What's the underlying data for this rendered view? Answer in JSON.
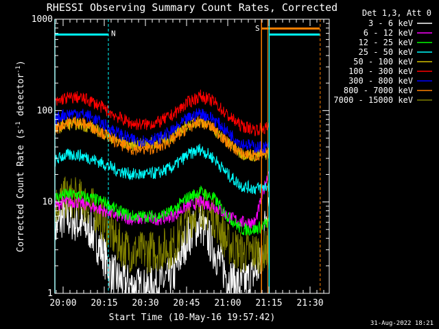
{
  "chart_data": {
    "type": "line",
    "title": "RHESSI Observing Summary Count Rates, Corrected",
    "xlabel": "Start Time (10-May-16 19:57:42)",
    "ylabel": "Corrected Count Rate (s⁻¹ detector⁻¹)",
    "ylabel_parts": {
      "main": "Corrected Count Rate (s",
      "exp1": "-1",
      "mid": " detector",
      "exp2": "-1",
      "end": ")"
    },
    "y_scale": "log",
    "ylim": [
      1,
      1000
    ],
    "y_ticks": [
      {
        "v": 1,
        "label": "1"
      },
      {
        "v": 10,
        "label": "10"
      },
      {
        "v": 100,
        "label": "100"
      },
      {
        "v": 1000,
        "label": "1000"
      }
    ],
    "xlim_minutes": [
      -3.0,
      97.0
    ],
    "x_ticks": [
      {
        "t": 0,
        "label": "20:00"
      },
      {
        "t": 15,
        "label": "20:15"
      },
      {
        "t": 30,
        "label": "20:30"
      },
      {
        "t": 45,
        "label": "20:45"
      },
      {
        "t": 60,
        "label": "21:00"
      },
      {
        "t": 75,
        "label": "21:15"
      },
      {
        "t": 90,
        "label": "21:30"
      }
    ],
    "legend_title": "Det 1,3, Att 0",
    "legend_position": "right",
    "footer_date": "31-Aug-2022 18:21",
    "series": [
      {
        "name": "3 - 6 keV",
        "color": "#ffffff",
        "x": [
          -3,
          0,
          5,
          10,
          14,
          17,
          20,
          25,
          30,
          35,
          40,
          45,
          50,
          55,
          60,
          65,
          72,
          75
        ],
        "y": [
          5,
          7,
          6,
          5,
          3,
          1.8,
          1.4,
          1.2,
          1.1,
          1.3,
          1.5,
          4,
          6,
          3,
          1.5,
          1.2,
          2,
          14
        ]
      },
      {
        "name": "6 - 12 keV",
        "color": "#ff00ff",
        "x": [
          -3,
          0,
          5,
          10,
          15,
          20,
          25,
          30,
          35,
          40,
          45,
          50,
          55,
          60,
          65,
          70,
          75
        ],
        "y": [
          9,
          10,
          10,
          9,
          8,
          7,
          6.5,
          6.5,
          6.5,
          7,
          9,
          10,
          9,
          7,
          6,
          6,
          22
        ]
      },
      {
        "name": "12 - 25 keV",
        "color": "#00ff00",
        "x": [
          -3,
          0,
          5,
          10,
          15,
          20,
          25,
          30,
          35,
          40,
          45,
          50,
          55,
          60,
          65,
          70,
          75
        ],
        "y": [
          11,
          12,
          12,
          11,
          10,
          8,
          7,
          7,
          7,
          8,
          11,
          13,
          11,
          7,
          5,
          5,
          6
        ]
      },
      {
        "name": "25 - 50 keV",
        "color": "#00ffff",
        "x": [
          -3,
          0,
          5,
          10,
          15,
          20,
          25,
          30,
          35,
          40,
          45,
          50,
          55,
          60,
          65,
          70,
          75
        ],
        "y": [
          28,
          32,
          33,
          30,
          26,
          22,
          20,
          20,
          21,
          24,
          32,
          38,
          30,
          20,
          15,
          14,
          15
        ]
      },
      {
        "name": "50 - 100 keV",
        "color": "#d4c000",
        "x": [
          -3,
          0,
          5,
          10,
          15,
          20,
          25,
          30,
          35,
          40,
          45,
          50,
          55,
          60,
          65,
          70,
          75
        ],
        "y": [
          60,
          70,
          72,
          66,
          56,
          46,
          42,
          43,
          45,
          52,
          68,
          78,
          62,
          44,
          34,
          32,
          34
        ]
      },
      {
        "name": "100 - 300 keV",
        "color": "#ff0000",
        "x": [
          -3,
          0,
          5,
          10,
          15,
          20,
          25,
          30,
          35,
          40,
          45,
          50,
          55,
          60,
          65,
          70,
          75
        ],
        "y": [
          120,
          135,
          140,
          128,
          105,
          85,
          72,
          70,
          75,
          90,
          120,
          145,
          125,
          88,
          68,
          62,
          65
        ]
      },
      {
        "name": "300 - 800 keV",
        "color": "#0000ff",
        "x": [
          -3,
          0,
          5,
          10,
          15,
          20,
          25,
          30,
          35,
          40,
          45,
          50,
          55,
          60,
          65,
          70,
          75
        ],
        "y": [
          80,
          90,
          95,
          86,
          70,
          57,
          48,
          47,
          50,
          60,
          80,
          95,
          80,
          58,
          44,
          40,
          40
        ]
      },
      {
        "name": "800 - 7000 keV",
        "color": "#ff8000",
        "x": [
          -3,
          0,
          5,
          10,
          15,
          20,
          25,
          30,
          35,
          40,
          45,
          50,
          55,
          60,
          65,
          70,
          75
        ],
        "y": [
          62,
          72,
          76,
          68,
          56,
          44,
          38,
          38,
          40,
          48,
          64,
          76,
          64,
          44,
          34,
          32,
          34
        ]
      },
      {
        "name": "7000 - 15000 keV",
        "color": "#7f7f00",
        "x": [
          -3,
          0,
          5,
          10,
          15,
          20,
          25,
          30,
          35,
          40,
          45,
          50,
          55,
          60,
          65,
          70,
          75
        ],
        "y": [
          9,
          11,
          11,
          9,
          6,
          3.5,
          2.8,
          2.8,
          3,
          3.2,
          6,
          9,
          7,
          3.5,
          2.8,
          2.8,
          3
        ]
      }
    ],
    "annotations": [
      {
        "text": "N",
        "color": "#00ffff",
        "x": 16.5,
        "y": 700
      },
      {
        "text": "S",
        "color": "#ff8000",
        "x": 72.5,
        "y": 800
      }
    ]
  }
}
